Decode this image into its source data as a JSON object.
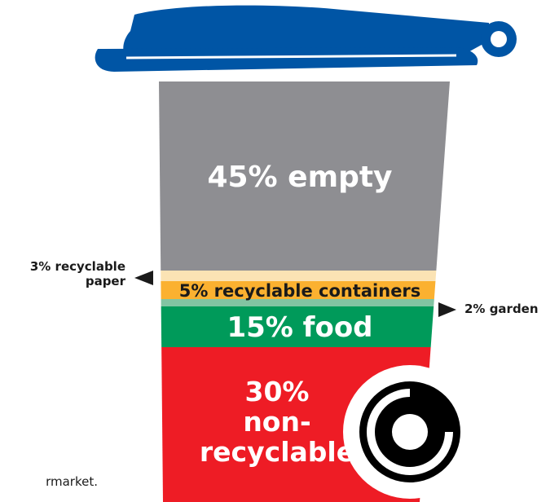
{
  "chart_data": {
    "type": "stacked-bar",
    "unit": "%",
    "segments": [
      {
        "name": "empty",
        "label": "45% empty",
        "value": 45,
        "color": "#8e8e92",
        "text_color": "#ffffff"
      },
      {
        "name": "recyclable paper",
        "label": "3% recyclable paper",
        "value": 3,
        "color": "#fbe3b4",
        "text_color": "#1a1a1a"
      },
      {
        "name": "recyclable containers",
        "label": "5% recyclable containers",
        "value": 5,
        "color": "#fbb130",
        "text_color": "#1a1a1a"
      },
      {
        "name": "garden",
        "label": "2% garden",
        "value": 2,
        "color": "#82c4a2",
        "text_color": "#1a1a1a"
      },
      {
        "name": "food",
        "label": "15% food",
        "value": 15,
        "color": "#009a5a",
        "text_color": "#ffffff"
      },
      {
        "name": "non-recyclable",
        "label_lines": [
          "30%",
          "non-",
          "recyclable"
        ],
        "value": 30,
        "color": "#ee1c25",
        "text_color": "#ffffff"
      }
    ],
    "external_labels": {
      "paper_lines": [
        "3% recyclable",
        "paper"
      ],
      "garden": "2% garden"
    }
  },
  "caption": "rmarket.",
  "colors": {
    "lid": "#0055a5",
    "wheel": "#000000"
  }
}
